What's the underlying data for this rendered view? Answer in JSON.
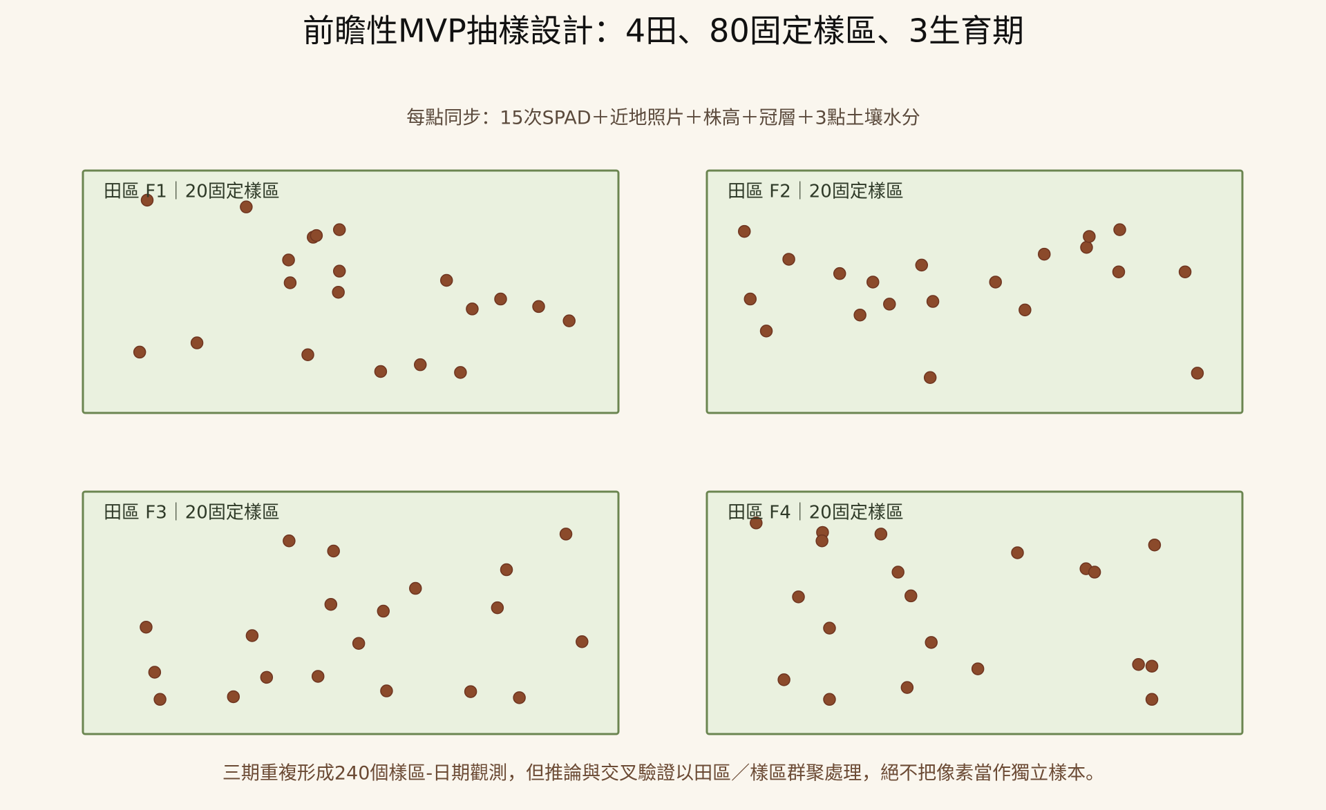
{
  "title": "前瞻性MVP抽樣設計：4田、80固定樣區、3生育期",
  "subtitle": "每點同步：15次SPAD＋近地照片＋株高＋冠層＋3點土壤水分",
  "note": "三期重複形成240個樣區-日期觀測，但推論與交叉驗證以田區／樣區群聚處理，絕不把像素當作獨立樣本。",
  "chart_data": [
    {
      "type": "scatter",
      "title": "田區 F1｜20固定樣區",
      "color": "#8b4a2b",
      "xlim": [
        0,
        100
      ],
      "ylim": [
        0,
        100
      ],
      "x": [
        12.0,
        30.5,
        43.0,
        43.6,
        47.9,
        38.4,
        47.9,
        38.7,
        47.7,
        67.9,
        72.7,
        78.0,
        85.1,
        90.8,
        10.6,
        21.3,
        42.0,
        55.6,
        63.0,
        70.5
      ],
      "y": [
        87.8,
        85.0,
        72.5,
        73.2,
        75.6,
        63.1,
        58.5,
        53.7,
        49.8,
        54.7,
        42.9,
        47.0,
        43.9,
        38.0,
        25.1,
        28.9,
        24.0,
        17.1,
        19.9,
        16.7
      ]
    },
    {
      "type": "scatter",
      "title": "田區 F2｜20固定樣區",
      "color": "#8b4a2b",
      "xlim": [
        0,
        100
      ],
      "ylim": [
        0,
        100
      ],
      "x": [
        7.0,
        15.3,
        8.1,
        11.1,
        24.8,
        31.0,
        28.6,
        34.1,
        40.1,
        42.2,
        41.7,
        53.9,
        59.4,
        63.0,
        70.9,
        71.4,
        77.1,
        76.9,
        89.3,
        91.6
      ],
      "y": [
        74.9,
        63.4,
        47.0,
        33.8,
        57.5,
        54.0,
        40.4,
        44.9,
        61.0,
        46.0,
        14.6,
        54.0,
        42.5,
        65.5,
        68.3,
        72.8,
        75.6,
        58.2,
        58.2,
        16.4
      ]
    },
    {
      "type": "scatter",
      "title": "田區 F3｜20固定樣區",
      "color": "#8b4a2b",
      "xlim": [
        0,
        100
      ],
      "ylim": [
        0,
        100
      ],
      "x": [
        38.5,
        46.8,
        90.2,
        79.1,
        62.1,
        46.3,
        56.1,
        77.4,
        11.8,
        31.6,
        51.5,
        93.2,
        13.4,
        34.3,
        43.9,
        14.4,
        28.1,
        56.7,
        72.4,
        81.5
      ],
      "y": [
        79.7,
        75.5,
        82.5,
        67.8,
        60.1,
        53.5,
        50.7,
        52.1,
        44.1,
        40.6,
        37.4,
        38.1,
        25.5,
        23.4,
        23.8,
        14.3,
        15.4,
        17.8,
        17.5,
        15.0
      ]
    },
    {
      "type": "scatter",
      "title": "田區 F4｜20固定樣區",
      "color": "#8b4a2b",
      "xlim": [
        0,
        100
      ],
      "ylim": [
        0,
        100
      ],
      "x": [
        9.2,
        21.6,
        21.5,
        32.5,
        58.0,
        83.6,
        70.8,
        72.4,
        35.7,
        38.1,
        17.1,
        22.9,
        41.9,
        50.6,
        14.4,
        37.4,
        22.9,
        80.6,
        83.1,
        83.1
      ],
      "y": [
        87.1,
        83.2,
        79.7,
        82.5,
        74.8,
        78.0,
        68.2,
        66.8,
        66.8,
        57.0,
        56.6,
        43.7,
        37.8,
        26.9,
        22.4,
        19.2,
        14.3,
        28.7,
        28.0,
        14.3
      ]
    }
  ]
}
